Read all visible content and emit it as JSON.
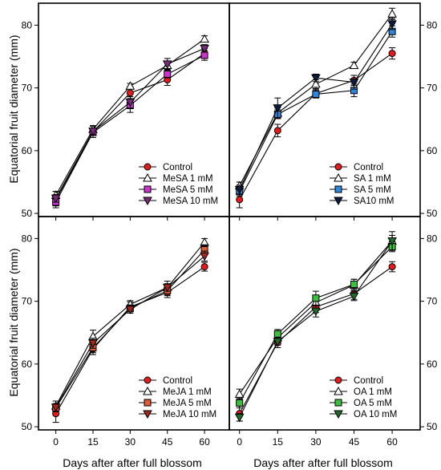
{
  "figure": {
    "ylabel": "Equatorial  fruit diameter (mm)",
    "xlabel": "Days after after full blossom"
  },
  "chart_data": [
    {
      "type": "line",
      "panel": "top-left",
      "x": [
        0,
        15,
        30,
        45,
        60
      ],
      "xticks": [
        "0",
        "15",
        "30",
        "45",
        "60"
      ],
      "ylim": [
        49.5,
        83.5
      ],
      "yticks": [
        50,
        60,
        70,
        80
      ],
      "ytick_side": "left",
      "legend_position": "bottom-right",
      "series": [
        {
          "name": "Control",
          "marker": "circle",
          "color": "#e8191b",
          "values": [
            52.2,
            63.0,
            69.2,
            71.3,
            75.5
          ],
          "err": [
            1.3,
            0.9,
            1.0,
            0.9,
            0.8
          ]
        },
        {
          "name": "MeSA 1 mM",
          "marker": "triangle-up",
          "color": "#ffffff",
          "values": [
            52.9,
            63.4,
            70.3,
            73.6,
            77.8
          ],
          "err": [
            0.6,
            0.6,
            0.4,
            0.6,
            0.5
          ]
        },
        {
          "name": "MeSA 5 mM",
          "marker": "square",
          "color": "#cc33cc",
          "values": [
            51.8,
            62.9,
            67.2,
            72.2,
            75.2
          ],
          "err": [
            0.6,
            0.5,
            1.1,
            0.6,
            0.8
          ]
        },
        {
          "name": "MeSA 10 mM",
          "marker": "triangle-down",
          "color": "#7a2b7a",
          "values": [
            52.4,
            63.1,
            67.7,
            73.8,
            76.3
          ],
          "err": [
            0.6,
            0.5,
            0.9,
            0.9,
            0.6
          ]
        }
      ]
    },
    {
      "type": "line",
      "panel": "top-right",
      "x": [
        0,
        15,
        30,
        45,
        60
      ],
      "xticks": [
        "0",
        "15",
        "30",
        "45",
        "60"
      ],
      "ylim": [
        49.5,
        83.5
      ],
      "yticks": [
        50,
        60,
        70,
        80
      ],
      "ytick_side": "right",
      "legend_position": "bottom-right",
      "series": [
        {
          "name": "Control",
          "marker": "circle",
          "color": "#e8191b",
          "values": [
            52.2,
            63.2,
            69.1,
            71.2,
            75.5
          ],
          "err": [
            1.3,
            1.0,
            0.7,
            0.8,
            0.9
          ]
        },
        {
          "name": "SA 1 mM",
          "marker": "triangle-up",
          "color": "#ffffff",
          "values": [
            54.4,
            66.0,
            70.6,
            73.6,
            81.8
          ],
          "err": [
            0.6,
            0.8,
            0.7,
            0.5,
            0.9
          ]
        },
        {
          "name": "SA 5 mM",
          "marker": "square",
          "color": "#2e86de",
          "values": [
            53.5,
            65.8,
            69.0,
            69.6,
            79.0
          ],
          "err": [
            0.7,
            0.7,
            0.6,
            1.0,
            0.9
          ]
        },
        {
          "name": "SA10 mM",
          "marker": "triangle-down",
          "color": "#0d1b3f",
          "values": [
            53.8,
            66.8,
            71.6,
            70.9,
            80.2
          ],
          "err": [
            0.7,
            1.6,
            0.6,
            1.1,
            0.9
          ]
        }
      ]
    },
    {
      "type": "line",
      "panel": "bottom-left",
      "x": [
        0,
        15,
        30,
        45,
        60
      ],
      "xticks": [
        "0",
        "15",
        "30",
        "45",
        "60"
      ],
      "ylim": [
        49.5,
        83.5
      ],
      "yticks": [
        50,
        60,
        70,
        80
      ],
      "ytick_side": "left",
      "legend_position": "bottom-right",
      "series": [
        {
          "name": "Control",
          "marker": "circle",
          "color": "#e8191b",
          "values": [
            52.1,
            62.4,
            69.1,
            71.4,
            75.5
          ],
          "err": [
            1.4,
            0.9,
            0.8,
            0.8,
            0.7
          ]
        },
        {
          "name": "MeJA 1 mM",
          "marker": "triangle-up",
          "color": "#ffffff",
          "values": [
            53.3,
            64.4,
            69.5,
            72.2,
            79.4
          ],
          "err": [
            0.8,
            1.0,
            0.6,
            1.0,
            0.6
          ]
        },
        {
          "name": "MeJA 5 mM",
          "marker": "square",
          "color": "#e05a3a",
          "values": [
            53.0,
            62.6,
            68.9,
            71.7,
            78.2
          ],
          "err": [
            0.6,
            0.8,
            0.5,
            0.8,
            0.8
          ]
        },
        {
          "name": "MeJA 10 mM",
          "marker": "triangle-down",
          "color": "#a3261a",
          "values": [
            53.1,
            63.3,
            68.7,
            72.2,
            77.2
          ],
          "err": [
            0.6,
            0.8,
            0.6,
            0.6,
            0.8
          ]
        }
      ]
    },
    {
      "type": "line",
      "panel": "bottom-right",
      "x": [
        0,
        15,
        30,
        45,
        60
      ],
      "xticks": [
        "0",
        "15",
        "30",
        "45",
        "60"
      ],
      "ylim": [
        49.5,
        83.5
      ],
      "yticks": [
        50,
        60,
        70,
        80
      ],
      "ytick_side": "right",
      "legend_position": "bottom-right",
      "series": [
        {
          "name": "Control",
          "marker": "circle",
          "color": "#e8191b",
          "values": [
            52.1,
            63.4,
            69.1,
            71.2,
            75.5
          ],
          "err": [
            1.2,
            0.8,
            0.9,
            0.9,
            0.8
          ]
        },
        {
          "name": "OA 1 mM",
          "marker": "triangle-up",
          "color": "#ffffff",
          "values": [
            55.2,
            64.2,
            69.8,
            72.6,
            79.6
          ],
          "err": [
            0.8,
            0.8,
            0.9,
            0.9,
            0.9
          ]
        },
        {
          "name": "OA 5  mM",
          "marker": "square",
          "color": "#3cbf3c",
          "values": [
            53.8,
            64.8,
            70.5,
            72.7,
            78.7
          ],
          "err": [
            0.8,
            0.7,
            1.1,
            0.8,
            0.8
          ]
        },
        {
          "name": "OA 10 mM",
          "marker": "triangle-down",
          "color": "#1f6b2a",
          "values": [
            51.5,
            63.6,
            68.4,
            70.8,
            79.6
          ],
          "err": [
            0.6,
            0.6,
            0.9,
            0.7,
            1.5
          ]
        }
      ]
    }
  ]
}
